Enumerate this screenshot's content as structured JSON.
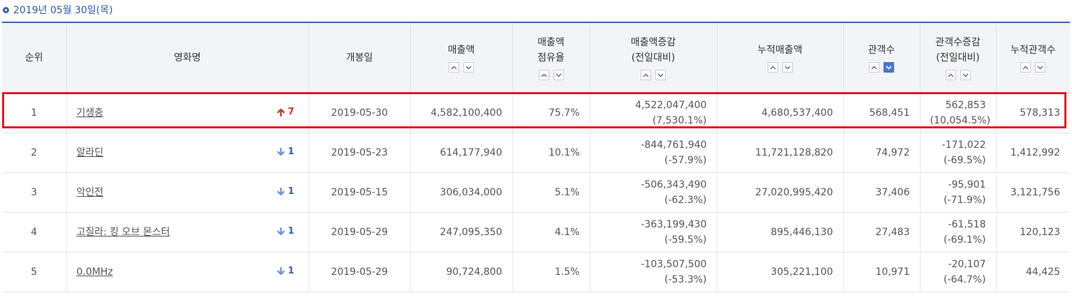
{
  "date_line": "2019년 05월 30일(목)",
  "columns": {
    "rank": "순위",
    "title": "영화명",
    "release_date": "개봉일",
    "sales": "매출액",
    "share_1": "매출액",
    "share_2": "점유율",
    "sales_change_1": "매출액증감",
    "sales_change_2": "(전일대비)",
    "cum_sales": "누적매출액",
    "audience": "관객수",
    "aud_change_1": "관객수증감",
    "aud_change_2": "(전일대비)",
    "cum_audience": "누적관객수"
  },
  "sort_active_column": "audience",
  "rows": [
    {
      "rank": "1",
      "title": "기생충",
      "change_dir": "up",
      "change": "7",
      "release": "2019-05-30",
      "sales": "4,582,100,400",
      "share": "75.7%",
      "sales_diff": "4,522,047,400",
      "sales_diff_pct": "(7,530.1%)",
      "cum_sales": "4,680,537,400",
      "audience": "568,451",
      "aud_diff": "562,853",
      "aud_diff_pct": "(10,054.5%)",
      "cum_audience": "578,313"
    },
    {
      "rank": "2",
      "title": "알라딘",
      "change_dir": "down",
      "change": "1",
      "release": "2019-05-23",
      "sales": "614,177,940",
      "share": "10.1%",
      "sales_diff": "-844,761,940",
      "sales_diff_pct": "(-57.9%)",
      "cum_sales": "11,721,128,820",
      "audience": "74,972",
      "aud_diff": "-171,022",
      "aud_diff_pct": "(-69.5%)",
      "cum_audience": "1,412,992"
    },
    {
      "rank": "3",
      "title": "악인전",
      "change_dir": "down",
      "change": "1",
      "release": "2019-05-15",
      "sales": "306,034,000",
      "share": "5.1%",
      "sales_diff": "-506,343,490",
      "sales_diff_pct": "(-62.3%)",
      "cum_sales": "27,020,995,420",
      "audience": "37,406",
      "aud_diff": "-95,901",
      "aud_diff_pct": "(-71.9%)",
      "cum_audience": "3,121,756"
    },
    {
      "rank": "4",
      "title": "고질라: 킹 오브 몬스터",
      "change_dir": "down",
      "change": "1",
      "release": "2019-05-29",
      "sales": "247,095,350",
      "share": "4.1%",
      "sales_diff": "-363,199,430",
      "sales_diff_pct": "(-59.5%)",
      "cum_sales": "895,446,130",
      "audience": "27,483",
      "aud_diff": "-61,518",
      "aud_diff_pct": "(-69.1%)",
      "cum_audience": "120,123"
    },
    {
      "rank": "5",
      "title": "0.0MHz",
      "change_dir": "down",
      "change": "1",
      "release": "2019-05-29",
      "sales": "90,724,800",
      "share": "1.5%",
      "sales_diff": "-103,507,500",
      "sales_diff_pct": "(-53.3%)",
      "cum_sales": "305,221,100",
      "audience": "10,971",
      "aud_diff": "-20,107",
      "aud_diff_pct": "(-64.7%)",
      "cum_audience": "44,425"
    }
  ],
  "colors": {
    "accent": "#3e63a8",
    "highlight": "#e11b22",
    "up": "#c0392b",
    "down": "#3d62a6"
  }
}
